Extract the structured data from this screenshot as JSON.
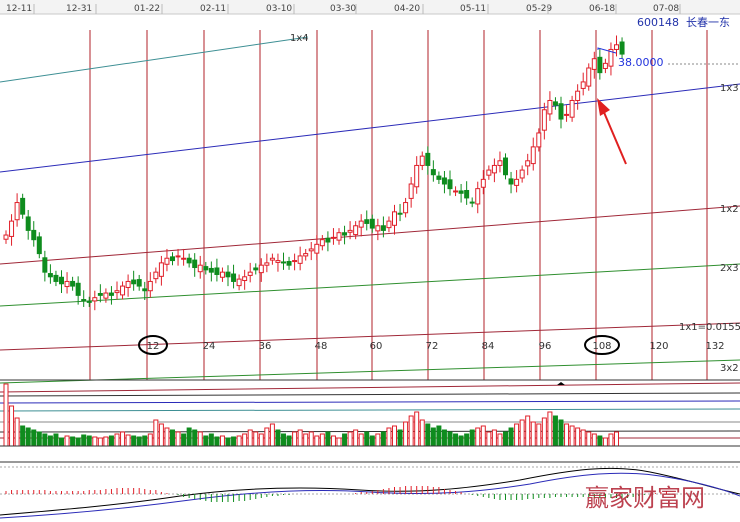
{
  "header": {
    "dates": [
      "12-11",
      "12-31",
      "01-22",
      "02-11",
      "03-10",
      "03-30",
      "04-20",
      "05-11",
      "05-29",
      "06-18",
      "07-08"
    ],
    "stock_code": "600148",
    "stock_name": "长春一东"
  },
  "price_annotation": "38.0000",
  "chart_data": {
    "type": "candlestick",
    "gann_lines": [
      "1x4",
      "1x3",
      "1x2",
      "2x3",
      "1x1=0.0155",
      "3x2"
    ],
    "period_counts": [
      "12",
      "24",
      "36",
      "48",
      "60",
      "72",
      "84",
      "96",
      "108",
      "120",
      "132"
    ],
    "circled_counts": [
      "12",
      "108"
    ],
    "price_marker": 38.0
  },
  "watermark": "赢家财富网",
  "colors": {
    "up": "#e0202a",
    "down": "#0f8c1e",
    "time_line": "#b0202a",
    "gann_blue": "#2b2bb8",
    "gann_teal": "#3d8f94",
    "gann_red": "#a02838",
    "gann_green": "#2f8f2f",
    "annotation_blue": "#2233dd"
  }
}
